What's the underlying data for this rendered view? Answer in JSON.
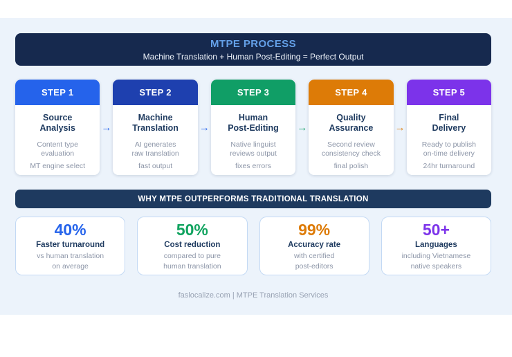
{
  "hero": {
    "title": "MTPE PROCESS",
    "subtitle": "Machine Translation + Human Post-Editing = Perfect Output",
    "bg": "#16294e",
    "title_color": "#64a0e8"
  },
  "flow": {
    "glyph": "→",
    "arrow_colors": [
      "#2563eb",
      "#2563eb",
      "#109e66",
      "#dd7b07"
    ]
  },
  "steps": [
    {
      "label": "STEP 1",
      "color": "#2563eb",
      "title": "Source\nAnalysis",
      "desc_primary": "Content type\nevaluation",
      "desc_secondary": "MT engine select"
    },
    {
      "label": "STEP 2",
      "color": "#1e40af",
      "title": "Machine\nTranslation",
      "desc_primary": "AI generates\nraw translation",
      "desc_secondary": "fast output"
    },
    {
      "label": "STEP 3",
      "color": "#109e66",
      "title": "Human\nPost-Editing",
      "desc_primary": "Native linguist\nreviews output",
      "desc_secondary": "fixes errors"
    },
    {
      "label": "STEP 4",
      "color": "#dd7b07",
      "title": "Quality\nAssurance",
      "desc_primary": "Second review\nconsistency check",
      "desc_secondary": "final polish"
    },
    {
      "label": "STEP 5",
      "color": "#7c33ea",
      "title": "Final\nDelivery",
      "desc_primary": "Ready to publish\non-time delivery",
      "desc_secondary": "24hr turnaround"
    }
  ],
  "benefits": {
    "heading": "WHY MTPE OUTPERFORMS TRADITIONAL TRANSLATION",
    "bar_bg": "#1e3a5f",
    "stats": [
      {
        "value": "40%",
        "color": "#2563eb",
        "label": "Faster turnaround",
        "detail": "vs human translation\non average"
      },
      {
        "value": "50%",
        "color": "#10a35f",
        "label": "Cost reduction",
        "detail": "compared to pure\nhuman translation"
      },
      {
        "value": "99%",
        "color": "#dd7b07",
        "label": "Accuracy rate",
        "detail": "with certified\npost-editors"
      },
      {
        "value": "50+",
        "color": "#7c33ea",
        "label": "Languages",
        "detail": "including Vietnamese\nnative speakers"
      }
    ]
  },
  "footer": {
    "text": "faslocalize.com | MTPE Translation Services"
  }
}
